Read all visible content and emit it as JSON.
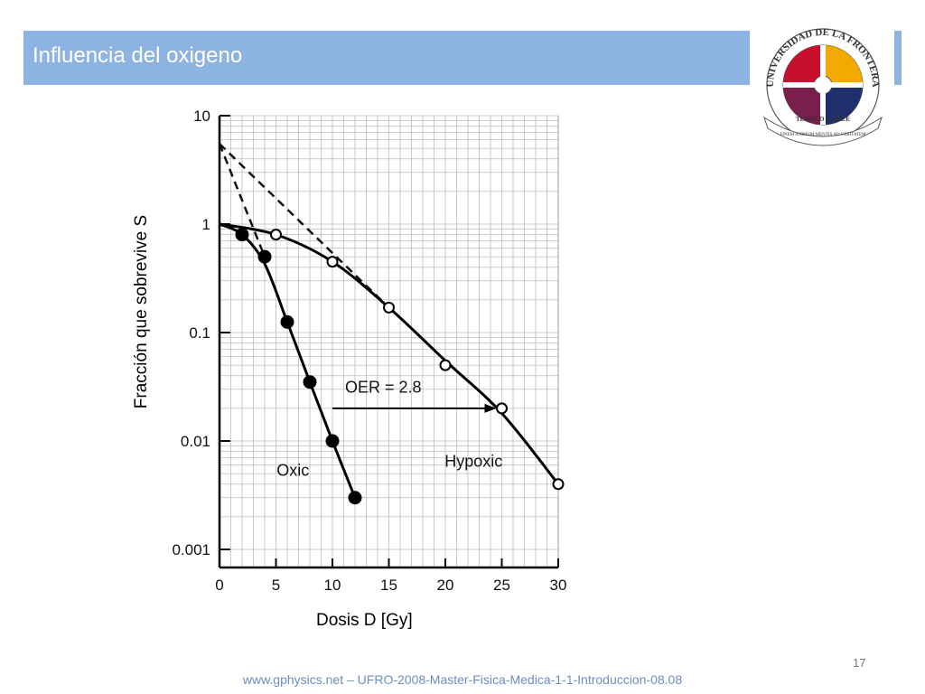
{
  "slide": {
    "title": "Influencia del oxigeno",
    "page_number": "17",
    "footer": "www.gphysics.net – UFRO-2008-Master-Fisica-Medica-1-1-Introduccion-08.08"
  },
  "logo": {
    "name": "UNIVERSIDAD DE LA FRONTERA",
    "city": "TEMUCO • CHILE",
    "motto": "FINEM ANIMUM MENTIS AD VERITATEM"
  },
  "colors": {
    "title_bar": "#8db3e2",
    "footer_text": "#6c8ebf",
    "logo_red": "#c8102e",
    "logo_yellow": "#f2a900",
    "logo_navy": "#1f2f6d",
    "logo_purple": "#7a1e4e"
  },
  "chart_data": {
    "type": "scatter",
    "xlabel": "Dosis D [Gy]",
    "ylabel": "Fracción que sobrevive S",
    "xlim": [
      0,
      30
    ],
    "ylim": [
      0.001,
      10
    ],
    "yscale": "log",
    "grid": true,
    "x_ticks": [
      "0",
      "5",
      "10",
      "15",
      "20",
      "25",
      "30"
    ],
    "y_ticks": [
      "0.001",
      "0.01",
      "0.1",
      "1",
      "10"
    ],
    "series": [
      {
        "name": "Oxic",
        "marker": "filled",
        "x": [
          2,
          4,
          6,
          8,
          10,
          12
        ],
        "y": [
          0.8,
          0.5,
          0.125,
          0.035,
          0.01,
          0.003
        ],
        "curve_x": [
          0,
          2,
          4,
          6,
          8,
          10,
          12
        ],
        "curve_y": [
          1,
          0.8,
          0.43,
          0.125,
          0.035,
          0.01,
          0.003
        ]
      },
      {
        "name": "Hypoxic",
        "marker": "open",
        "x": [
          5,
          10,
          15,
          20,
          25,
          30
        ],
        "y": [
          0.8,
          0.45,
          0.17,
          0.05,
          0.02,
          0.004
        ],
        "curve_x": [
          0,
          5,
          10,
          15,
          20,
          25,
          30
        ],
        "curve_y": [
          1,
          0.8,
          0.45,
          0.17,
          0.055,
          0.018,
          0.004
        ]
      }
    ],
    "extrapolations": [
      {
        "x": [
          0,
          4
        ],
        "y": [
          5.5,
          0.5
        ]
      },
      {
        "x": [
          0,
          15
        ],
        "y": [
          5.5,
          0.17
        ]
      }
    ],
    "annotations": [
      {
        "text": "OER = 2.8",
        "x": 14.5,
        "y": 0.028,
        "arrow_from": [
          10,
          0.02
        ],
        "arrow_to": [
          25,
          0.02
        ]
      },
      {
        "text": "Oxic",
        "x": 6.5,
        "y": 0.0048
      },
      {
        "text": "Hypoxic",
        "x": 22.5,
        "y": 0.0058
      }
    ]
  }
}
